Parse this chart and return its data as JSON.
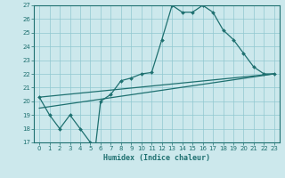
{
  "xlabel": "Humidex (Indice chaleur)",
  "ylabel": "",
  "xlim": [
    -0.5,
    23.5
  ],
  "ylim": [
    17,
    27
  ],
  "xticks": [
    0,
    1,
    2,
    3,
    4,
    5,
    6,
    7,
    8,
    9,
    10,
    11,
    12,
    13,
    14,
    15,
    16,
    17,
    18,
    19,
    20,
    21,
    22,
    23
  ],
  "yticks": [
    17,
    18,
    19,
    20,
    21,
    22,
    23,
    24,
    25,
    26,
    27
  ],
  "bg_color": "#cce8ec",
  "line_color": "#1e7070",
  "line1_x": [
    0,
    1,
    2,
    3,
    4,
    5,
    5.5,
    6,
    7,
    8,
    9,
    10,
    11,
    12,
    13,
    14,
    15,
    16,
    17,
    18,
    19,
    20,
    21,
    22,
    23
  ],
  "line1_y": [
    20.3,
    19,
    18,
    19,
    18,
    17,
    16.7,
    20,
    20.5,
    21.5,
    21.7,
    22,
    22.1,
    24.5,
    27,
    26.5,
    26.5,
    27,
    26.5,
    25.2,
    24.5,
    23.5,
    22.5,
    22,
    22
  ],
  "line2_x": [
    0,
    23
  ],
  "line2_y": [
    19.5,
    22
  ],
  "line3_x": [
    0,
    23
  ],
  "line3_y": [
    20.3,
    22
  ],
  "font_size_tick": 5,
  "font_size_xlabel": 6
}
